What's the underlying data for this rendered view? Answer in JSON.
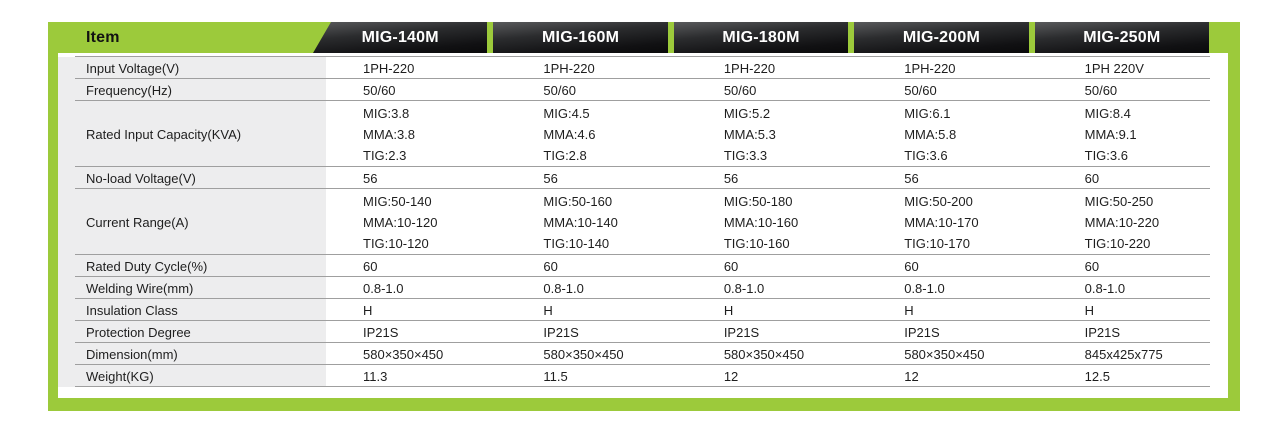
{
  "colors": {
    "accent_green": "#9cca3b",
    "header_dark": "#141416",
    "header_text": "#ffffff",
    "label_column_bg": "#ededee",
    "separator_gray": "#9f9f9f",
    "body_text": "#1e1e1e"
  },
  "table": {
    "item_header": "Item",
    "columns": [
      "MIG-140M",
      "MIG-160M",
      "MIG-180M",
      "MIG-200M",
      "MIG-250M"
    ],
    "rows": [
      {
        "label": "Input Voltage(V)",
        "values": [
          "1PH-220",
          "1PH-220",
          "1PH-220",
          "1PH-220",
          "1PH 220V"
        ]
      },
      {
        "label": "Frequency(Hz)",
        "values": [
          "50/60",
          "50/60",
          "50/60",
          "50/60",
          "50/60"
        ]
      },
      {
        "label": "Rated Input Capacity(KVA)",
        "values": [
          "MIG:3.8\nMMA:3.8\nTIG:2.3",
          "MIG:4.5\nMMA:4.6\nTIG:2.8",
          "MIG:5.2\nMMA:5.3\nTIG:3.3",
          "MIG:6.1\nMMA:5.8\nTIG:3.6",
          "MIG:8.4\nMMA:9.1\nTIG:3.6"
        ]
      },
      {
        "label": "No-load Voltage(V)",
        "values": [
          "56",
          "56",
          "56",
          "56",
          "60"
        ]
      },
      {
        "label": "Current Range(A)",
        "values": [
          "MIG:50-140\nMMA:10-120\nTIG:10-120",
          "MIG:50-160\nMMA:10-140\nTIG:10-140",
          "MIG:50-180\nMMA:10-160\nTIG:10-160",
          "MIG:50-200\nMMA:10-170\nTIG:10-170",
          "MIG:50-250\nMMA:10-220\nTIG:10-220"
        ]
      },
      {
        "label": "Rated Duty Cycle(%)",
        "values": [
          "60",
          "60",
          "60",
          "60",
          "60"
        ]
      },
      {
        "label": "Welding Wire(mm)",
        "values": [
          "0.8-1.0",
          "0.8-1.0",
          "0.8-1.0",
          "0.8-1.0",
          "0.8-1.0"
        ]
      },
      {
        "label": "Insulation Class",
        "values": [
          "H",
          "H",
          "H",
          "H",
          "H"
        ]
      },
      {
        "label": "Protection Degree",
        "values": [
          "IP21S",
          "IP21S",
          "IP21S",
          "IP21S",
          "IP21S"
        ]
      },
      {
        "label": "Dimension(mm)",
        "values": [
          "580×350×450",
          "580×350×450",
          "580×350×450",
          "580×350×450",
          "845x425x775"
        ]
      },
      {
        "label": "Weight(KG)",
        "values": [
          "11.3",
          "11.5",
          "12",
          "12",
          "12.5"
        ]
      }
    ]
  }
}
